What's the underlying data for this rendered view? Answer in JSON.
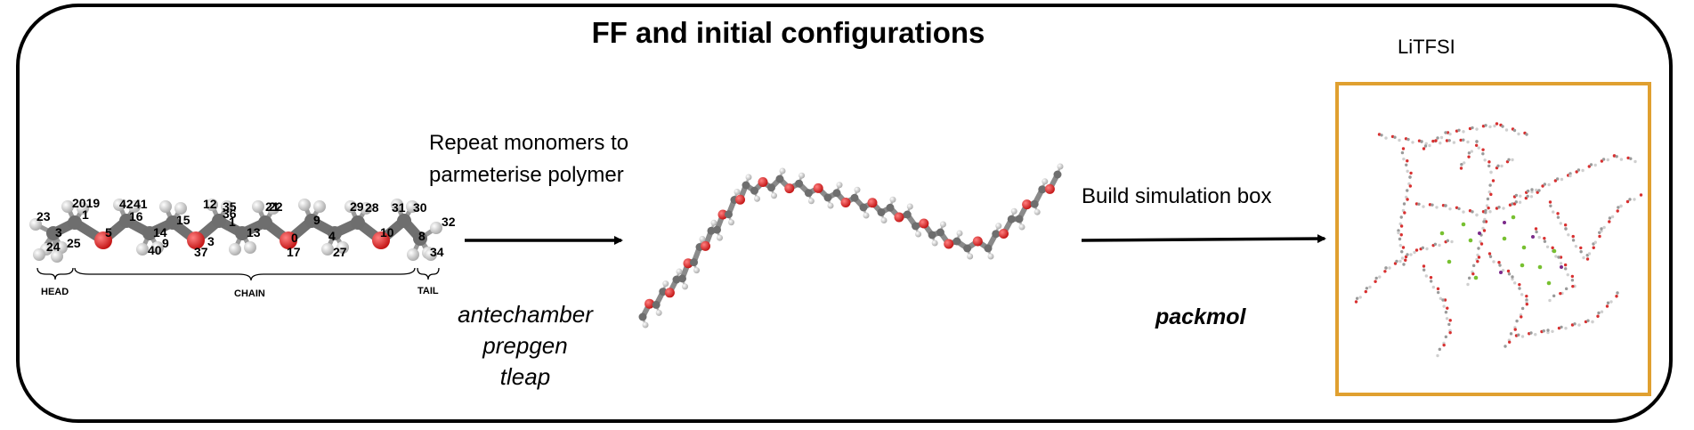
{
  "title": "FF and initial configurations",
  "box_label": "LiTFSI",
  "step_monomer": {
    "lines": [
      "Repeat monomers to",
      "parmeterise polymer"
    ]
  },
  "tools_monomer": [
    "antechamber",
    "prepgen",
    "tleap"
  ],
  "step_box": {
    "label": "Build simulation box"
  },
  "tool_box": "packmol",
  "monomer": {
    "segments": {
      "head": "HEAD",
      "chain": "CHAIN",
      "tail": "TAIL"
    },
    "atom_numbers": [
      "23",
      "3",
      "24",
      "25",
      "2019",
      "1",
      "5",
      "42",
      "41",
      "16",
      "40",
      "9",
      "14",
      "15",
      "12",
      "37",
      "3",
      "35",
      "36",
      "1",
      "21",
      "22",
      "13",
      "0",
      "17",
      "9",
      "4",
      "27",
      "29",
      "28",
      "31",
      "30",
      "10",
      "8",
      "32",
      "34"
    ]
  },
  "colors": {
    "carbon": "#6e6e6e",
    "oxygen": "#e02020",
    "hydrogen": "#e8e8e8",
    "box_border": "#e0a030",
    "lithium": "#7b2a8a",
    "fluorine": "#77c030"
  }
}
